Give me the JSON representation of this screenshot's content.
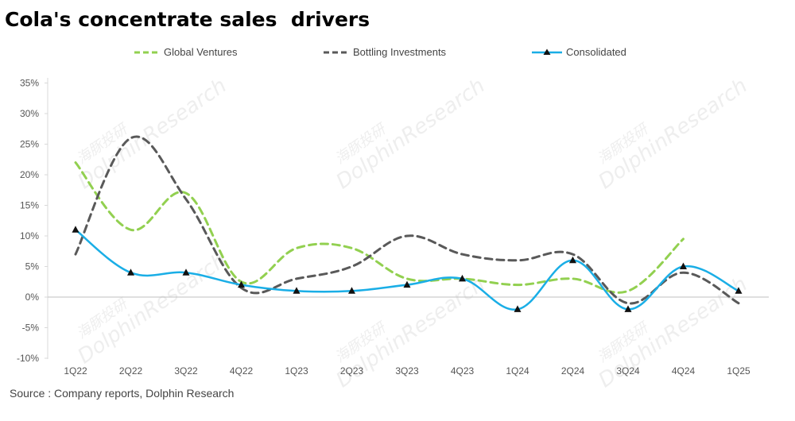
{
  "title": "Cola's concentrate sales  drivers",
  "source": "Source : Company reports, Dolphin Research",
  "watermark": {
    "cn": "海豚投研",
    "en": "DolphinResearch"
  },
  "chart_data": {
    "type": "line",
    "categories": [
      "1Q22",
      "2Q22",
      "3Q22",
      "4Q22",
      "1Q23",
      "2Q23",
      "3Q23",
      "4Q23",
      "1Q24",
      "2Q24",
      "3Q24",
      "4Q24",
      "1Q25"
    ],
    "ylim": [
      -10,
      35
    ],
    "yticks": [
      -10,
      -5,
      0,
      5,
      10,
      15,
      20,
      25,
      30,
      35
    ],
    "ytick_labels": [
      "-10%",
      "-5%",
      "0%",
      "5%",
      "10%",
      "15%",
      "20%",
      "25%",
      "30%",
      "35%"
    ],
    "grid": false,
    "legend_position": "top",
    "series": [
      {
        "name": "Global Ventures",
        "color": "#92D050",
        "style": "dashed",
        "values": [
          22,
          11,
          17,
          2.5,
          8,
          8,
          3,
          3,
          2,
          3,
          1,
          9.5,
          null
        ]
      },
      {
        "name": "Bottling Investments",
        "color": "#595959",
        "style": "dashed",
        "values": [
          7,
          26,
          16,
          1.5,
          3,
          5,
          10,
          7,
          6,
          7,
          -1,
          4,
          -1
        ]
      },
      {
        "name": "Consolidated",
        "color": "#1AAEE6",
        "style": "solid-triangle",
        "values": [
          11,
          4,
          4,
          2,
          1,
          1,
          2,
          3,
          -2,
          6,
          -2,
          5,
          1
        ]
      }
    ]
  }
}
